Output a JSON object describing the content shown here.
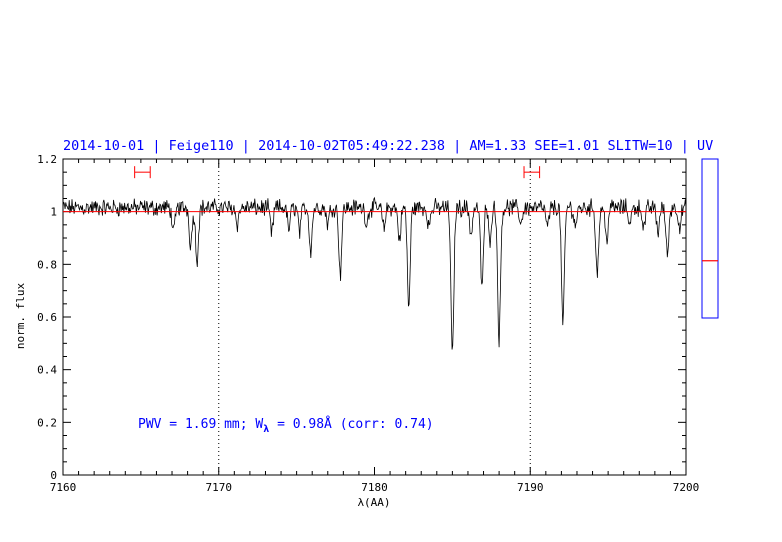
{
  "chart_data": {
    "type": "line",
    "title": "2014-10-01 | Feige110 | 2014-10-02T05:49:22.238 | AM=1.33 SEE=1.01 SLITW=10 | UV",
    "xlabel": "λ(AA)",
    "ylabel": "norm. flux",
    "xlim": [
      7160,
      7200
    ],
    "ylim": [
      0,
      1.2
    ],
    "x_ticks": [
      7160,
      7170,
      7180,
      7190,
      7200
    ],
    "y_ticks": [
      0,
      0.2,
      0.4,
      0.6,
      0.8,
      1,
      1.2
    ],
    "grid": false,
    "annotation": {
      "pre": "PWV = 1.69 mm; W",
      "sub": "λ",
      "post": " = 0.98Å (corr: 0.74)"
    },
    "continuum_level": 1.0,
    "reference_lines_x": [
      7170,
      7190
    ],
    "integration_windows": [
      {
        "x_start": 7164.6,
        "x_end": 7165.6,
        "y": 1.15
      },
      {
        "x_start": 7189.6,
        "x_end": 7190.6,
        "y": 1.15
      }
    ],
    "absorption_lines": [
      {
        "x": 7167.1,
        "depth": 0.1
      },
      {
        "x": 7168.2,
        "depth": 0.14
      },
      {
        "x": 7168.6,
        "depth": 0.2
      },
      {
        "x": 7171.2,
        "depth": 0.06
      },
      {
        "x": 7173.4,
        "depth": 0.1
      },
      {
        "x": 7174.5,
        "depth": 0.08
      },
      {
        "x": 7175.2,
        "depth": 0.09
      },
      {
        "x": 7175.9,
        "depth": 0.16
      },
      {
        "x": 7177.0,
        "depth": 0.06
      },
      {
        "x": 7177.8,
        "depth": 0.25
      },
      {
        "x": 7179.5,
        "depth": 0.06
      },
      {
        "x": 7180.6,
        "depth": 0.08
      },
      {
        "x": 7181.6,
        "depth": 0.12
      },
      {
        "x": 7182.2,
        "depth": 0.38
      },
      {
        "x": 7183.5,
        "depth": 0.07
      },
      {
        "x": 7185.0,
        "depth": 0.57
      },
      {
        "x": 7186.2,
        "depth": 0.1
      },
      {
        "x": 7186.9,
        "depth": 0.3
      },
      {
        "x": 7187.4,
        "depth": 0.12
      },
      {
        "x": 7188.0,
        "depth": 0.5
      },
      {
        "x": 7189.4,
        "depth": 0.06
      },
      {
        "x": 7191.1,
        "depth": 0.08
      },
      {
        "x": 7192.1,
        "depth": 0.45
      },
      {
        "x": 7192.9,
        "depth": 0.07
      },
      {
        "x": 7194.3,
        "depth": 0.25
      },
      {
        "x": 7194.9,
        "depth": 0.12
      },
      {
        "x": 7196.4,
        "depth": 0.06
      },
      {
        "x": 7197.3,
        "depth": 0.08
      },
      {
        "x": 7198.2,
        "depth": 0.09
      },
      {
        "x": 7198.8,
        "depth": 0.18
      },
      {
        "x": 7199.6,
        "depth": 0.07
      }
    ],
    "side_marker": {
      "ylim": [
        0,
        1
      ],
      "value": 0.36
    }
  },
  "colors": {
    "title": "#0000ff",
    "annotation": "#0000ff",
    "spectrum": "#000000",
    "continuum": "#ff0000",
    "window": "#ff0000",
    "side_box": "#0000ff",
    "side_marker": "#ff0000"
  }
}
